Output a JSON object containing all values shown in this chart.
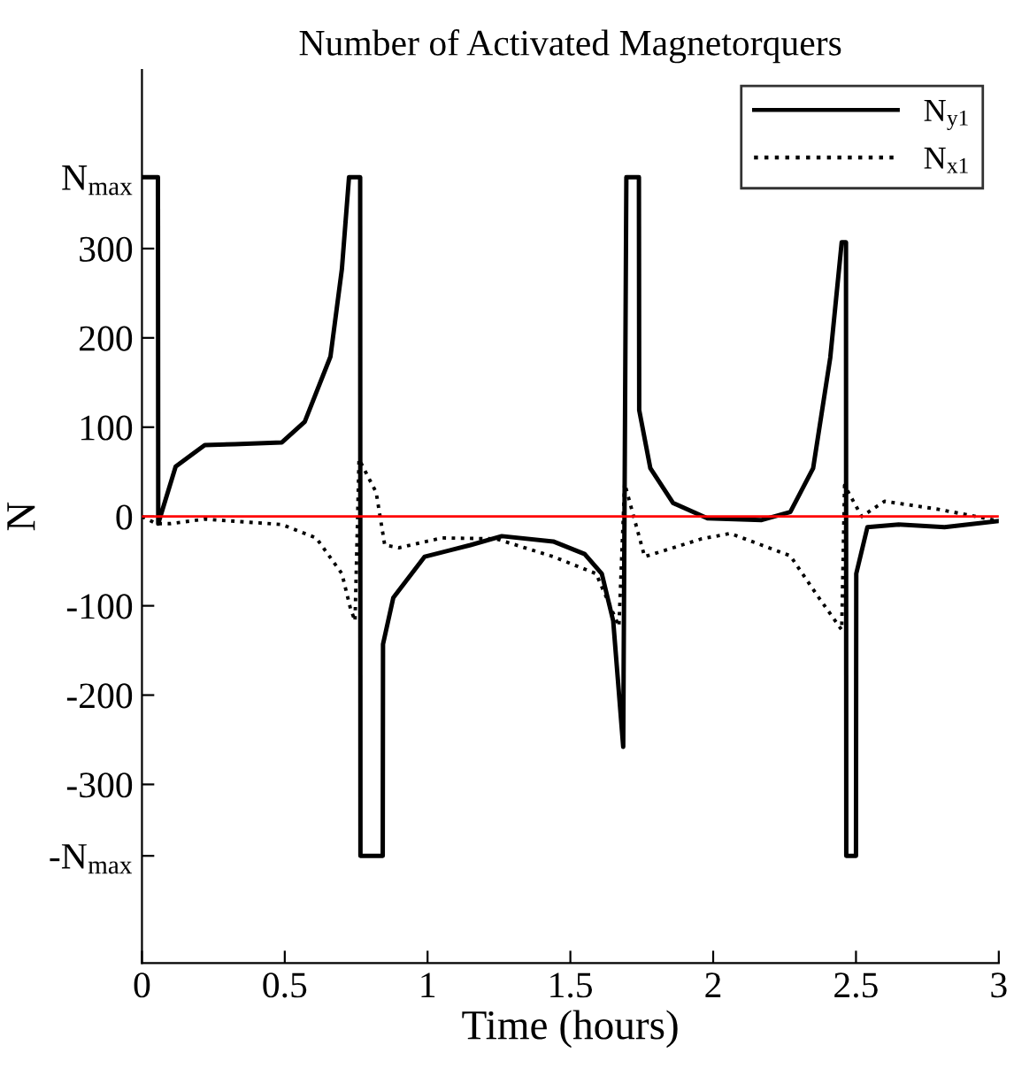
{
  "chart_data": {
    "type": "line",
    "title": "Number of Activated Magnetorquers",
    "xlabel": "Time (hours)",
    "ylabel": "N",
    "xlim": [
      0,
      3
    ],
    "xticks": [
      0,
      0.5,
      1,
      1.5,
      2,
      2.5,
      3
    ],
    "ylim": [
      -500,
      500
    ],
    "yticks": [
      {
        "value": -380,
        "label": "-N$_{max}$"
      },
      -300,
      -200,
      -100,
      0,
      100,
      200,
      300,
      {
        "value": 380,
        "label": "N$_{max}$"
      }
    ],
    "grid": false,
    "legend": "top right",
    "marker": "none",
    "ref_lines": [
      {
        "axis": "y",
        "value": 0,
        "color": "#ff0000"
      }
    ],
    "series": [
      {
        "name": "N$_{y1}$",
        "color": "#000000",
        "line_style": "solid",
        "x": [
          0,
          0.056,
          0.057,
          0.118,
          0.22,
          0.325,
          0.49,
          0.57,
          0.66,
          0.7,
          0.725,
          0.753,
          0.764,
          0.765,
          0.843,
          0.844,
          0.88,
          0.99,
          1.15,
          1.26,
          1.44,
          1.55,
          1.61,
          1.65,
          1.685,
          1.696,
          1.74,
          1.741,
          1.78,
          1.86,
          1.98,
          2.17,
          2.27,
          2.35,
          2.41,
          2.45,
          2.465,
          2.466,
          2.5,
          2.501,
          2.54,
          2.65,
          2.81,
          3.0
        ],
        "values": [
          380,
          380,
          -8,
          56,
          80,
          81,
          83,
          106,
          179,
          277,
          380,
          380,
          380,
          -380,
          -380,
          -143,
          -91,
          -45,
          -32,
          -22,
          -28,
          -42,
          -64,
          -117,
          -258,
          380,
          380,
          119,
          54,
          15,
          -2,
          -4,
          5,
          54,
          178,
          307,
          307,
          -380,
          -380,
          -64,
          -12,
          -9,
          -12,
          -5
        ]
      },
      {
        "name": "N$_{x1}$",
        "color": "#000000",
        "line_style": "dotted",
        "x": [
          0,
          0.05,
          0.1,
          0.22,
          0.49,
          0.61,
          0.7,
          0.73,
          0.746,
          0.76,
          0.82,
          0.85,
          0.9,
          1.05,
          1.24,
          1.44,
          1.59,
          1.67,
          1.69,
          1.76,
          1.96,
          2.06,
          2.27,
          2.37,
          2.45,
          2.46,
          2.52,
          2.6,
          2.79,
          3.0
        ],
        "values": [
          0,
          -8,
          -8,
          -3,
          -9,
          -24,
          -64,
          -103,
          -117,
          64,
          27,
          -32,
          -35,
          -24,
          -25,
          -45,
          -64,
          -123,
          37,
          -45,
          -25,
          -19,
          -44,
          -91,
          -127,
          35,
          0,
          17,
          8,
          -5
        ]
      }
    ]
  }
}
